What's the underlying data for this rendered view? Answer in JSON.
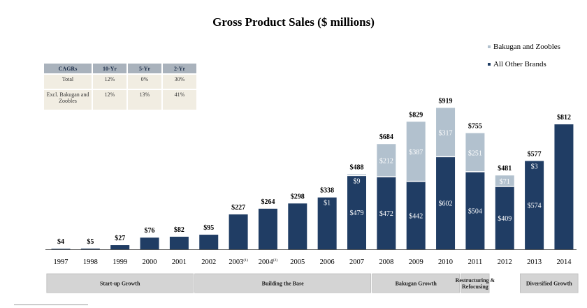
{
  "colors": {
    "all_other": "#203d64",
    "bakugan": "#b2c1ce",
    "phase_bg": "#d4d4d4",
    "table_header": "#a9b2bc",
    "table_cell": "#f1ede2"
  },
  "cagr_table": {
    "headers": [
      "CAGRs",
      "10-Yr",
      "5-Yr",
      "2-Yr"
    ],
    "rows": [
      {
        "label": "Total",
        "values": [
          "12%",
          "0%",
          "30%"
        ]
      },
      {
        "label": "Excl. Bakugan and Zoobles",
        "values": [
          "12%",
          "13%",
          "41%"
        ]
      }
    ]
  },
  "chart_data": {
    "type": "bar",
    "title": "Gross Product Sales ($ millions)",
    "stacked": true,
    "categories": [
      "1997",
      "1998",
      "1999",
      "2000",
      "2001",
      "2002",
      "2003(1)",
      "2004(2)",
      "2005",
      "2006",
      "2007",
      "2008",
      "2009",
      "2010",
      "2011",
      "2012",
      "2013",
      "2014"
    ],
    "category_labels": [
      {
        "year": "1997",
        "sup": ""
      },
      {
        "year": "1998",
        "sup": ""
      },
      {
        "year": "1999",
        "sup": ""
      },
      {
        "year": "2000",
        "sup": ""
      },
      {
        "year": "2001",
        "sup": ""
      },
      {
        "year": "2002",
        "sup": ""
      },
      {
        "year": "2003",
        "sup": "(1)"
      },
      {
        "year": "2004",
        "sup": "(2)"
      },
      {
        "year": "2005",
        "sup": ""
      },
      {
        "year": "2006",
        "sup": ""
      },
      {
        "year": "2007",
        "sup": ""
      },
      {
        "year": "2008",
        "sup": ""
      },
      {
        "year": "2009",
        "sup": ""
      },
      {
        "year": "2010",
        "sup": ""
      },
      {
        "year": "2011",
        "sup": ""
      },
      {
        "year": "2012",
        "sup": ""
      },
      {
        "year": "2013",
        "sup": ""
      },
      {
        "year": "2014",
        "sup": ""
      }
    ],
    "series": [
      {
        "name": "All Other Brands",
        "values": [
          4,
          5,
          27,
          76,
          82,
          95,
          227,
          264,
          298,
          337,
          479,
          472,
          442,
          602,
          504,
          409,
          574,
          812
        ]
      },
      {
        "name": "Bakugan and Zoobles",
        "values": [
          0,
          0,
          0,
          0,
          0,
          0,
          0,
          0,
          0,
          1,
          9,
          212,
          387,
          317,
          251,
          71,
          3,
          0
        ]
      }
    ],
    "totals": [
      4,
      5,
      27,
      76,
      82,
      95,
      227,
      264,
      298,
      338,
      488,
      684,
      829,
      919,
      755,
      481,
      577,
      812
    ],
    "total_labels": [
      "$4",
      "$5",
      "$27",
      "$76",
      "$82",
      "$95",
      "$227",
      "$264",
      "$298",
      "$338",
      "$488",
      "$684",
      "$829",
      "$919",
      "$755",
      "$481",
      "$577",
      "$812"
    ],
    "segment_labels": {
      "All Other Brands": [
        "",
        "",
        "",
        "",
        "",
        "",
        "",
        "",
        "",
        "",
        "$479",
        "$472",
        "$442",
        "$602",
        "$504",
        "$409",
        "$574",
        ""
      ],
      "Bakugan and Zoobles": [
        "",
        "",
        "",
        "",
        "",
        "",
        "",
        "",
        "",
        "$1",
        "$9",
        "$212",
        "$387",
        "$317",
        "$251",
        "$71",
        "$3",
        ""
      ]
    },
    "ylim": [
      0,
      1000
    ],
    "grid": false,
    "legend_position": "top-right",
    "phases": [
      {
        "label": "Start-up Growth",
        "from": "1997",
        "to": "2001"
      },
      {
        "label": "Building the Base",
        "from": "2002",
        "to": "2007"
      },
      {
        "label": "Bakugan Growth",
        "from": "2008",
        "to": "2010"
      },
      {
        "label": "Restructuring & Refocusing",
        "from": "2011",
        "to": "2011"
      },
      {
        "label": "Diversified Growth",
        "from": "2013",
        "to": "2014"
      }
    ]
  }
}
